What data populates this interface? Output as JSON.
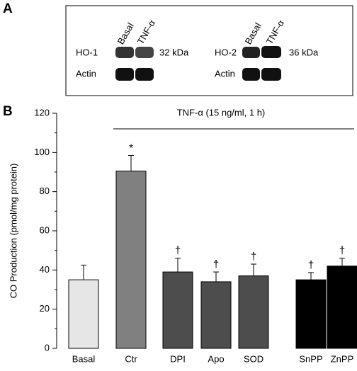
{
  "panel_a": {
    "label": "A",
    "blots": [
      {
        "lanes": [
          "Basal",
          "TNF-α"
        ],
        "protein": "HO-1",
        "size": "32 kDa",
        "loading": "Actin"
      },
      {
        "lanes": [
          "Basal",
          "TNF-α"
        ],
        "protein": "HO-2",
        "size": "36 kDa",
        "loading": "Actin"
      }
    ]
  },
  "chart_data": {
    "type": "bar",
    "panel_label": "B",
    "ylabel": "CO Production (pmol/mg protein)",
    "annotation": "TNF-α (15 ng/ml, 1 h)",
    "categories": [
      "Basal",
      "Ctr",
      "DPI",
      "Apo",
      "SOD",
      "SnPP",
      "ZnPP"
    ],
    "values": [
      35,
      90.5,
      39,
      34,
      37,
      35,
      42
    ],
    "errors": [
      7.5,
      8,
      7,
      5,
      6,
      3.7,
      4
    ],
    "markers": [
      null,
      "*",
      "†",
      "†",
      "†",
      "†",
      "†"
    ],
    "colors": [
      "#e6e6e6",
      "#808080",
      "#4d4d4d",
      "#4d4d4d",
      "#4d4d4d",
      "#000000",
      "#000000"
    ],
    "ylim": [
      0,
      120
    ],
    "yticks": [
      0,
      20,
      40,
      60,
      80,
      100,
      120
    ],
    "minor_yticks": [
      10,
      30,
      50,
      70,
      90,
      110
    ]
  }
}
